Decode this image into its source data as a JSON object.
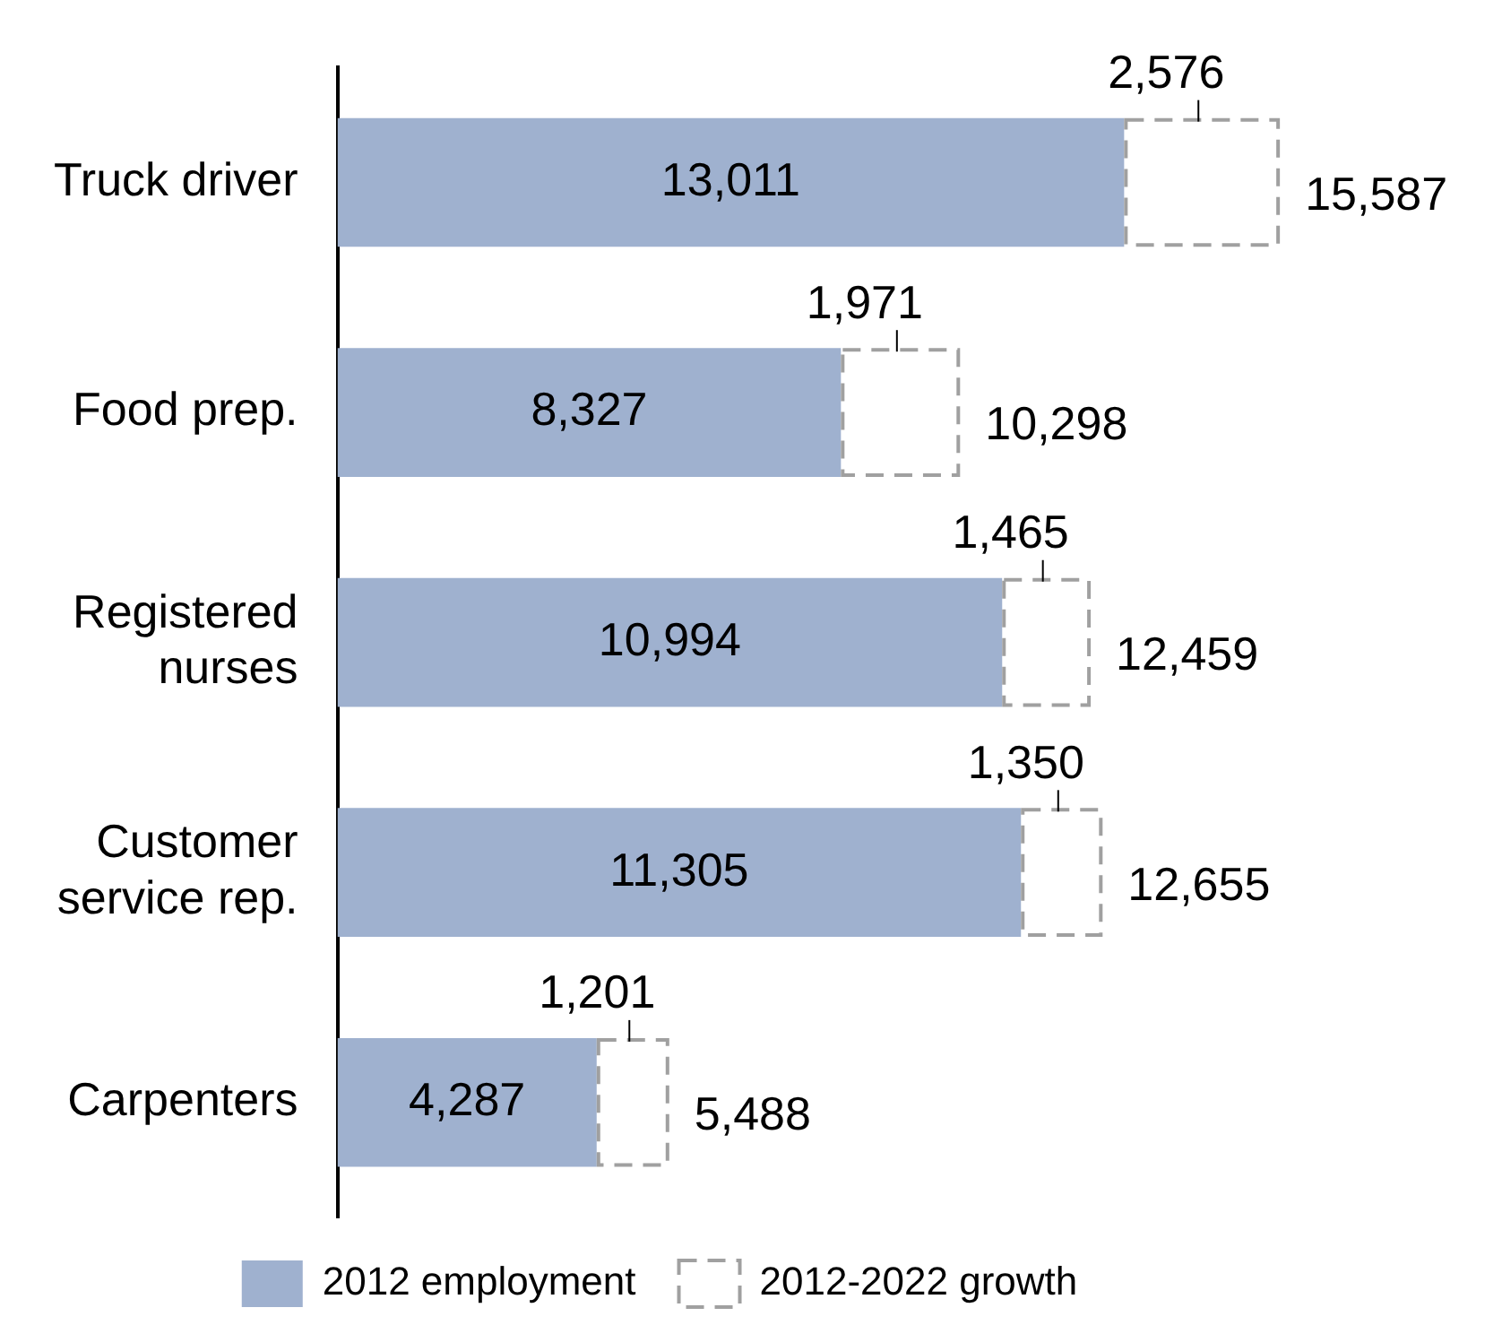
{
  "chart_data": {
    "type": "bar",
    "orientation": "horizontal",
    "stacked": true,
    "categories": [
      "Truck driver",
      "Food prep.",
      "Registered nurses",
      "Customer service rep.",
      "Carpenters"
    ],
    "series": [
      {
        "name": "2012 employment",
        "color": "#9fb1cf",
        "values": [
          13011,
          8327,
          10994,
          11305,
          4287
        ],
        "value_labels": [
          "13,011",
          "8,327",
          "10,994",
          "11,305",
          "4,287"
        ]
      },
      {
        "name": "2012-2022 growth",
        "color": "#a0a0a0",
        "line_style": "dashed",
        "values": [
          2576,
          1971,
          1465,
          1350,
          1201
        ],
        "value_labels": [
          "2,576",
          "1,971",
          "1,465",
          "1,350",
          "1,201"
        ]
      }
    ],
    "totals": [
      "15,587",
      "10,298",
      "12,459",
      "12,655",
      "5,488"
    ],
    "tick_labels": "y",
    "grid": false,
    "legend": "bottom"
  }
}
